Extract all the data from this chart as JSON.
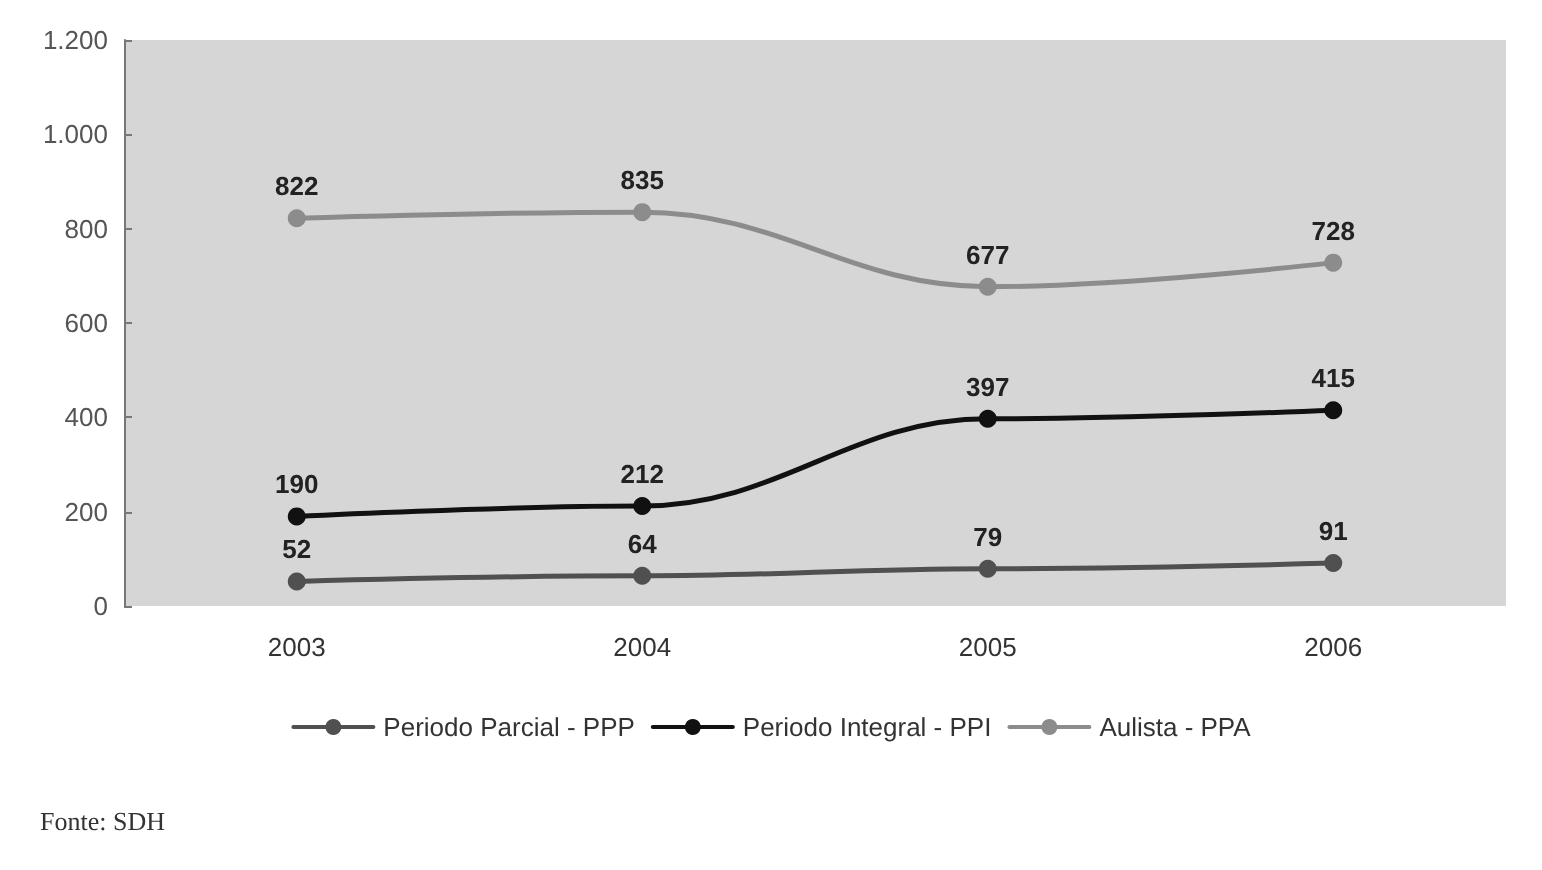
{
  "chart_data": {
    "type": "line",
    "categories": [
      "2003",
      "2004",
      "2005",
      "2006"
    ],
    "series": [
      {
        "name": "Periodo Parcial - PPP",
        "color": "#505050",
        "values": [
          52,
          64,
          79,
          91
        ]
      },
      {
        "name": "Periodo Integral - PPI",
        "color": "#111111",
        "values": [
          190,
          212,
          397,
          415
        ]
      },
      {
        "name": "Aulista - PPA",
        "color": "#8c8c8c",
        "values": [
          822,
          835,
          677,
          728
        ]
      }
    ],
    "ylim": [
      0,
      1200
    ],
    "yticks": [
      0,
      200,
      400,
      600,
      800,
      {
        "value": 1000,
        "label": "1.000"
      },
      {
        "value": 1200,
        "label": "1.200"
      }
    ],
    "grid": false,
    "legend": "bottom",
    "marker": "circle",
    "line_style": "solid",
    "data_labels": true,
    "annotations": [
      "Fonte: SDH"
    ]
  }
}
